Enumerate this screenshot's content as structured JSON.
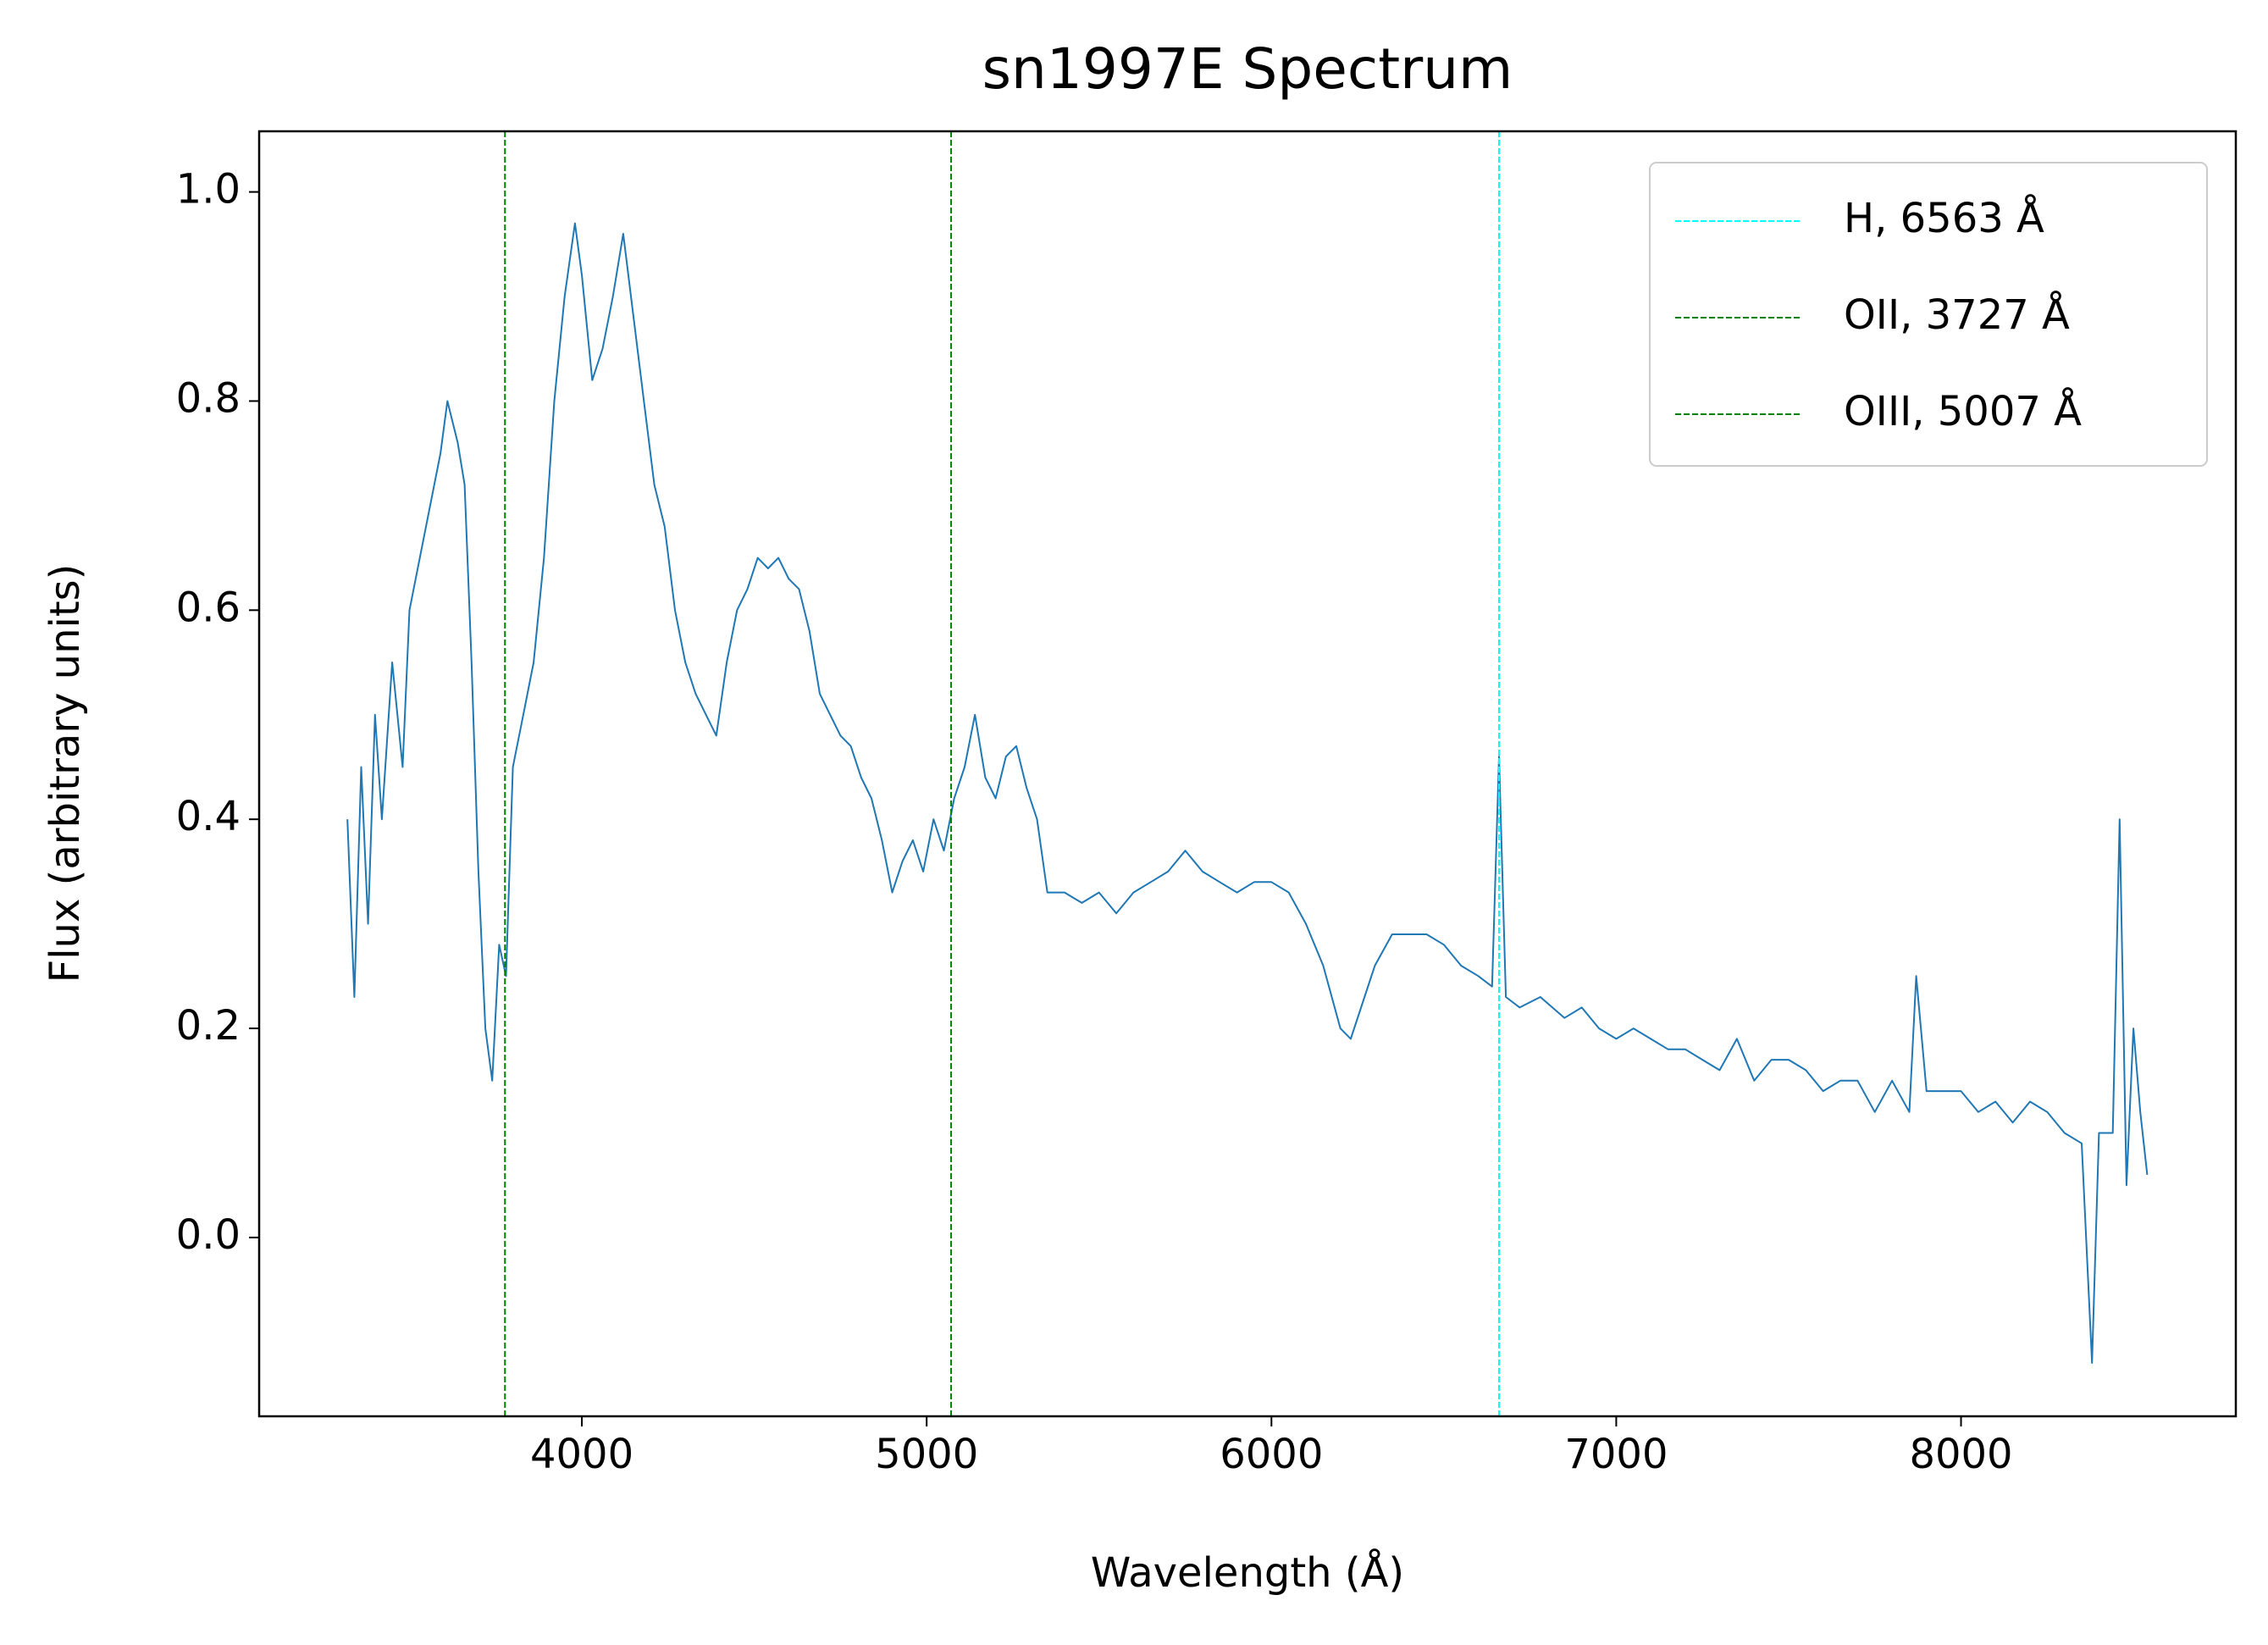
{
  "chart_data": {
    "type": "line",
    "title": "sn1997E Spectrum",
    "xlabel": "Wavelength (Å)",
    "ylabel": "Flux (arbitrary units)",
    "color": "#1f77b4",
    "x": [
      3320,
      3340,
      3360,
      3380,
      3400,
      3420,
      3450,
      3480,
      3500,
      3530,
      3560,
      3590,
      3610,
      3640,
      3660,
      3680,
      3700,
      3720,
      3740,
      3760,
      3780,
      3800,
      3830,
      3860,
      3890,
      3920,
      3950,
      3980,
      4000,
      4030,
      4060,
      4090,
      4120,
      4150,
      4180,
      4210,
      4240,
      4270,
      4300,
      4330,
      4360,
      4390,
      4420,
      4450,
      4480,
      4510,
      4540,
      4570,
      4600,
      4630,
      4660,
      4690,
      4720,
      4750,
      4780,
      4810,
      4840,
      4870,
      4900,
      4930,
      4960,
      4990,
      5020,
      5050,
      5080,
      5110,
      5140,
      5170,
      5200,
      5230,
      5260,
      5290,
      5320,
      5350,
      5400,
      5450,
      5500,
      5550,
      5600,
      5650,
      5700,
      5750,
      5800,
      5850,
      5900,
      5950,
      6000,
      6050,
      6100,
      6150,
      6200,
      6230,
      6270,
      6300,
      6350,
      6400,
      6450,
      6500,
      6550,
      6600,
      6640,
      6660,
      6680,
      6720,
      6780,
      6850,
      6900,
      6950,
      7000,
      7050,
      7100,
      7150,
      7200,
      7250,
      7300,
      7350,
      7400,
      7450,
      7500,
      7550,
      7600,
      7650,
      7700,
      7750,
      7800,
      7850,
      7870,
      7900,
      7950,
      8000,
      8050,
      8100,
      8150,
      8200,
      8250,
      8300,
      8350,
      8380,
      8400,
      8440,
      8460,
      8480,
      8500,
      8520,
      8540
    ],
    "values": [
      0.4,
      0.23,
      0.45,
      0.3,
      0.5,
      0.4,
      0.55,
      0.45,
      0.6,
      0.65,
      0.7,
      0.75,
      0.8,
      0.76,
      0.72,
      0.55,
      0.35,
      0.2,
      0.15,
      0.28,
      0.25,
      0.45,
      0.5,
      0.55,
      0.65,
      0.8,
      0.9,
      0.97,
      0.92,
      0.82,
      0.85,
      0.9,
      0.96,
      0.88,
      0.8,
      0.72,
      0.68,
      0.6,
      0.55,
      0.52,
      0.5,
      0.48,
      0.55,
      0.6,
      0.62,
      0.65,
      0.64,
      0.65,
      0.63,
      0.62,
      0.58,
      0.52,
      0.5,
      0.48,
      0.47,
      0.44,
      0.42,
      0.38,
      0.33,
      0.36,
      0.38,
      0.35,
      0.4,
      0.37,
      0.42,
      0.45,
      0.5,
      0.44,
      0.42,
      0.46,
      0.47,
      0.43,
      0.4,
      0.33,
      0.33,
      0.32,
      0.33,
      0.31,
      0.33,
      0.34,
      0.35,
      0.37,
      0.35,
      0.34,
      0.33,
      0.34,
      0.34,
      0.33,
      0.3,
      0.26,
      0.2,
      0.19,
      0.23,
      0.26,
      0.29,
      0.29,
      0.29,
      0.28,
      0.26,
      0.25,
      0.24,
      0.46,
      0.23,
      0.22,
      0.23,
      0.21,
      0.22,
      0.2,
      0.19,
      0.2,
      0.19,
      0.18,
      0.18,
      0.17,
      0.16,
      0.19,
      0.15,
      0.17,
      0.17,
      0.16,
      0.14,
      0.15,
      0.15,
      0.12,
      0.15,
      0.12,
      0.25,
      0.14,
      0.14,
      0.14,
      0.12,
      0.13,
      0.11,
      0.13,
      0.12,
      0.1,
      0.09,
      -0.12,
      0.1,
      0.1,
      0.4,
      0.05,
      0.2,
      0.12,
      0.06
    ],
    "vlines": [
      {
        "name": "H, 6563 Å",
        "x": 6660,
        "color": "cyan"
      },
      {
        "name": "OII, 3727 Å",
        "x": 3777,
        "color": "green"
      },
      {
        "name": "OIII, 5007 Å",
        "x": 5071,
        "color": "green"
      }
    ],
    "xlim": [
      3064,
      8797
    ],
    "ylim": [
      -0.171,
      1.058
    ],
    "xticks": [
      4000,
      5000,
      6000,
      7000,
      8000
    ],
    "yticks": [
      {
        "value": 0,
        "label": "0.0"
      },
      0.2,
      0.4,
      0.6,
      0.8,
      {
        "value": 1,
        "label": "1.0"
      }
    ],
    "grid": false,
    "legend": "upper right"
  }
}
